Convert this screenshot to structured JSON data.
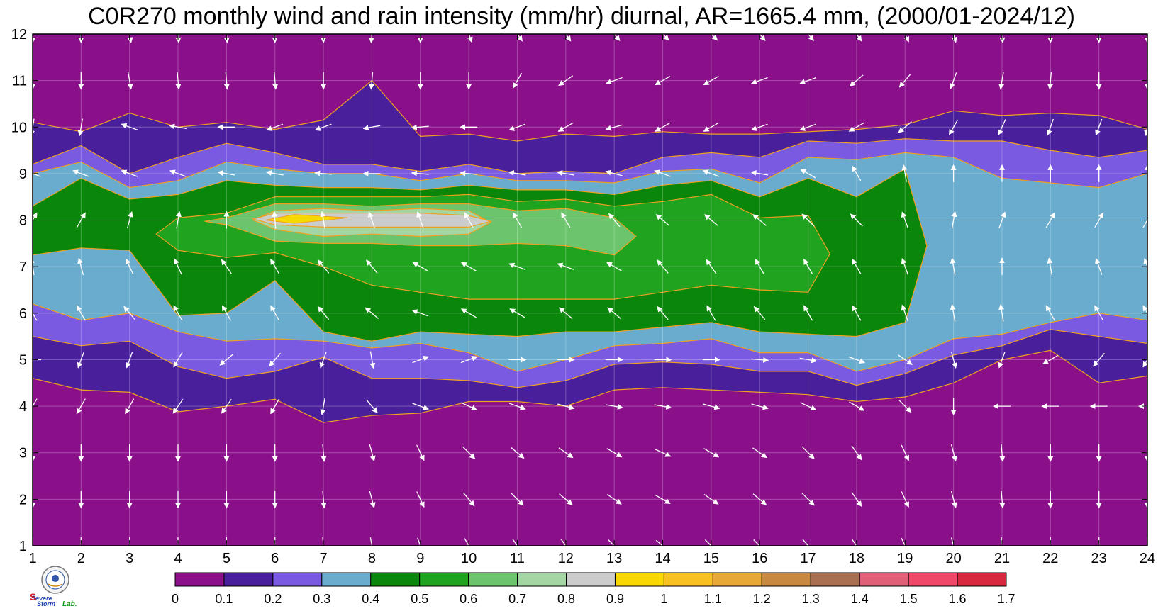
{
  "chart_data": {
    "type": "heatmap",
    "title": "C0R270 monthly wind and rain intensity (mm/hr) diurnal, AR=1665.4 mm, (2000/01-2024/12)",
    "x_ticks": [
      "1",
      "2",
      "3",
      "4",
      "5",
      "6",
      "7",
      "8",
      "9",
      "10",
      "11",
      "12",
      "13",
      "14",
      "15",
      "16",
      "17",
      "18",
      "19",
      "20",
      "21",
      "22",
      "23",
      "24"
    ],
    "y_ticks": [
      "1",
      "2",
      "3",
      "4",
      "5",
      "6",
      "7",
      "8",
      "9",
      "10",
      "11",
      "12"
    ],
    "xlim": [
      1,
      24
    ],
    "ylim": [
      1,
      12
    ],
    "grid": true,
    "colorbar": {
      "ticks": [
        "0",
        "0.1",
        "0.2",
        "0.3",
        "0.4",
        "0.5",
        "0.6",
        "0.7",
        "0.8",
        "0.9",
        "1",
        "1.1",
        "1.2",
        "1.3",
        "1.4",
        "1.5",
        "1.6",
        "1.7"
      ],
      "colors": [
        "#8a108a",
        "#4a1f9c",
        "#7a5ae0",
        "#6aacce",
        "#0a860a",
        "#20a420",
        "#6cc46c",
        "#a4d6a4",
        "#cccccc",
        "#f8d800",
        "#f8c020",
        "#e8a838",
        "#c88840",
        "#a87050",
        "#e06078",
        "#f04868",
        "#d82840"
      ]
    },
    "rain_contours": [
      {
        "level": 0.1,
        "bottom": [
          4.6,
          4.35,
          4.3,
          3.88,
          4.0,
          4.15,
          3.65,
          3.8,
          3.85,
          4.1,
          4.1,
          4.0,
          4.35,
          4.4,
          4.35,
          4.3,
          4.25,
          4.1,
          4.2,
          4.5,
          5.0,
          5.2,
          4.5,
          4.65
        ],
        "top": [
          10.1,
          9.9,
          10.3,
          10.0,
          10.1,
          9.95,
          10.15,
          11.0,
          9.8,
          9.85,
          9.7,
          9.85,
          9.8,
          9.9,
          9.85,
          9.85,
          9.9,
          9.95,
          10.05,
          10.35,
          10.25,
          10.3,
          10.25,
          9.95
        ]
      },
      {
        "level": 0.2,
        "bottom": [
          5.5,
          5.3,
          5.4,
          4.85,
          4.6,
          4.75,
          5.05,
          4.6,
          4.6,
          4.55,
          4.4,
          4.55,
          4.9,
          4.95,
          4.9,
          4.75,
          4.75,
          4.45,
          4.7,
          5.1,
          5.3,
          5.65,
          5.5,
          5.35
        ],
        "top": [
          9.2,
          9.6,
          9.0,
          9.35,
          9.65,
          9.45,
          9.2,
          9.2,
          9.05,
          9.2,
          9.0,
          9.05,
          9.0,
          9.35,
          9.45,
          9.35,
          9.7,
          9.65,
          9.75,
          9.7,
          9.7,
          9.5,
          9.35,
          9.5
        ]
      },
      {
        "level": 0.3,
        "bottom": [
          6.2,
          5.85,
          6.0,
          5.6,
          5.4,
          5.45,
          5.4,
          5.25,
          5.35,
          5.15,
          4.75,
          5.0,
          5.3,
          5.35,
          5.45,
          5.15,
          5.15,
          4.75,
          5.0,
          5.45,
          5.55,
          5.8,
          6.0,
          5.85
        ],
        "top": [
          9.0,
          9.25,
          8.7,
          8.85,
          9.25,
          9.1,
          9.0,
          9.0,
          8.85,
          9.0,
          8.85,
          8.85,
          8.8,
          9.05,
          9.1,
          8.8,
          9.35,
          9.3,
          9.45,
          9.35,
          8.9,
          8.8,
          8.7,
          9.0
        ]
      },
      {
        "level": 0.4,
        "bottom": [
          7.25,
          7.4,
          7.35,
          5.95,
          6.0,
          6.7,
          5.6,
          5.4,
          5.6,
          5.55,
          5.5,
          5.6,
          5.6,
          5.7,
          5.8,
          5.6,
          5.55,
          5.5,
          5.8,
          5.9,
          null,
          null,
          null,
          null
        ],
        "top": [
          8.3,
          8.9,
          8.45,
          8.55,
          8.85,
          8.75,
          8.7,
          8.7,
          8.65,
          8.75,
          8.65,
          8.65,
          8.55,
          8.75,
          8.85,
          8.5,
          8.9,
          8.5,
          9.1,
          null,
          null,
          null,
          null,
          null
        ]
      },
      {
        "level": 0.5,
        "bottom": [
          null,
          null,
          null,
          7.35,
          7.2,
          7.3,
          7.0,
          6.6,
          6.45,
          6.3,
          6.3,
          6.3,
          6.3,
          6.45,
          6.6,
          6.5,
          6.45,
          null,
          null,
          null,
          null,
          null,
          null,
          null
        ],
        "top": [
          null,
          null,
          null,
          8.05,
          8.15,
          8.5,
          8.5,
          8.5,
          8.5,
          8.55,
          8.4,
          8.45,
          8.3,
          8.4,
          8.55,
          8.05,
          8.1,
          null,
          null,
          null,
          null,
          null,
          null,
          null
        ]
      },
      {
        "level": 0.6,
        "bottom": [
          null,
          null,
          null,
          null,
          7.9,
          7.55,
          7.5,
          7.5,
          7.45,
          7.45,
          7.5,
          7.45,
          7.25,
          null,
          null,
          null,
          null,
          null,
          null,
          null,
          null,
          null,
          null,
          null
        ],
        "top": [
          null,
          null,
          null,
          null,
          8.05,
          8.35,
          8.35,
          8.3,
          8.35,
          8.35,
          8.2,
          8.25,
          8.05,
          null,
          null,
          null,
          null,
          null,
          null,
          null,
          null,
          null,
          null,
          null
        ]
      },
      {
        "level": 0.7,
        "bottom": [
          null,
          null,
          null,
          null,
          null,
          7.8,
          7.65,
          7.7,
          7.65,
          7.7,
          null,
          null,
          null,
          null,
          null,
          null,
          null,
          null,
          null,
          null,
          null,
          null,
          null,
          null
        ],
        "top": [
          null,
          null,
          null,
          null,
          null,
          8.2,
          8.25,
          8.2,
          8.25,
          8.2,
          null,
          null,
          null,
          null,
          null,
          null,
          null,
          null,
          null,
          null,
          null,
          null,
          null,
          null
        ]
      },
      {
        "level": 0.8,
        "bottom": [
          null,
          null,
          null,
          null,
          null,
          7.9,
          7.85,
          7.85,
          7.85,
          7.85,
          null,
          null,
          null,
          null,
          null,
          null,
          null,
          null,
          null,
          null,
          null,
          null,
          null,
          null
        ],
        "top": [
          null,
          null,
          null,
          null,
          null,
          8.15,
          8.15,
          8.15,
          8.15,
          8.1,
          null,
          null,
          null,
          null,
          null,
          null,
          null,
          null,
          null,
          null,
          null,
          null,
          null,
          null
        ]
      }
    ],
    "wind_arrow_angles_deg": [
      [
        90,
        90,
        90,
        90,
        90,
        90,
        85,
        80,
        70,
        60,
        55,
        55,
        45,
        40,
        45,
        45,
        50,
        55,
        65,
        75,
        85,
        90,
        90,
        90
      ],
      [
        90,
        90,
        90,
        90,
        90,
        90,
        85,
        75,
        65,
        50,
        45,
        40,
        35,
        30,
        35,
        40,
        45,
        55,
        65,
        75,
        85,
        90,
        90,
        90
      ],
      [
        90,
        90,
        90,
        90,
        90,
        90,
        85,
        75,
        65,
        45,
        40,
        35,
        30,
        25,
        30,
        35,
        45,
        55,
        65,
        75,
        85,
        90,
        90,
        90
      ],
      [
        120,
        120,
        120,
        125,
        125,
        120,
        100,
        50,
        20,
        25,
        20,
        15,
        10,
        10,
        15,
        15,
        25,
        30,
        45,
        90,
        180,
        180,
        180,
        180
      ],
      [
        180,
        110,
        110,
        120,
        140,
        130,
        110,
        80,
        -20,
        -20,
        0,
        0,
        0,
        0,
        0,
        5,
        10,
        20,
        35,
        75,
        110,
        150,
        130,
        120
      ],
      [
        -120,
        -120,
        -130,
        -120,
        -120,
        -120,
        -130,
        -140,
        -160,
        -150,
        -150,
        -140,
        -140,
        -130,
        -120,
        -130,
        -120,
        -120,
        -110,
        -100,
        -100,
        -120,
        -120,
        -120
      ],
      [
        -100,
        -105,
        -115,
        -115,
        -125,
        -120,
        -130,
        -130,
        -150,
        -150,
        -160,
        -160,
        -150,
        -130,
        -125,
        -120,
        -120,
        -120,
        -110,
        -100,
        -90,
        -100,
        -110,
        -110
      ],
      [
        -60,
        -60,
        -75,
        -80,
        -90,
        -95,
        -100,
        -110,
        -110,
        -120,
        -120,
        -120,
        -130,
        -140,
        -140,
        -140,
        -135,
        -135,
        -110,
        -80,
        -70,
        -60,
        -60,
        -60
      ],
      [
        200,
        200,
        200,
        -160,
        -170,
        -170,
        -175,
        -180,
        -175,
        -175,
        -170,
        -170,
        -165,
        -160,
        -160,
        -170,
        -150,
        -120,
        -100,
        -90,
        -90,
        -90,
        -90,
        -90
      ],
      [
        100,
        100,
        -160,
        -170,
        -180,
        160,
        160,
        170,
        175,
        180,
        160,
        150,
        165,
        150,
        150,
        160,
        160,
        150,
        140,
        120,
        115,
        110,
        110,
        100
      ],
      [
        90,
        90,
        80,
        85,
        85,
        85,
        90,
        95,
        90,
        90,
        120,
        145,
        160,
        150,
        150,
        160,
        160,
        140,
        130,
        110,
        100,
        95,
        90,
        90
      ],
      [
        90,
        90,
        80,
        85,
        85,
        90,
        90,
        95,
        90,
        70,
        55,
        55,
        50,
        45,
        45,
        50,
        50,
        55,
        65,
        75,
        85,
        90,
        90,
        90
      ]
    ]
  }
}
